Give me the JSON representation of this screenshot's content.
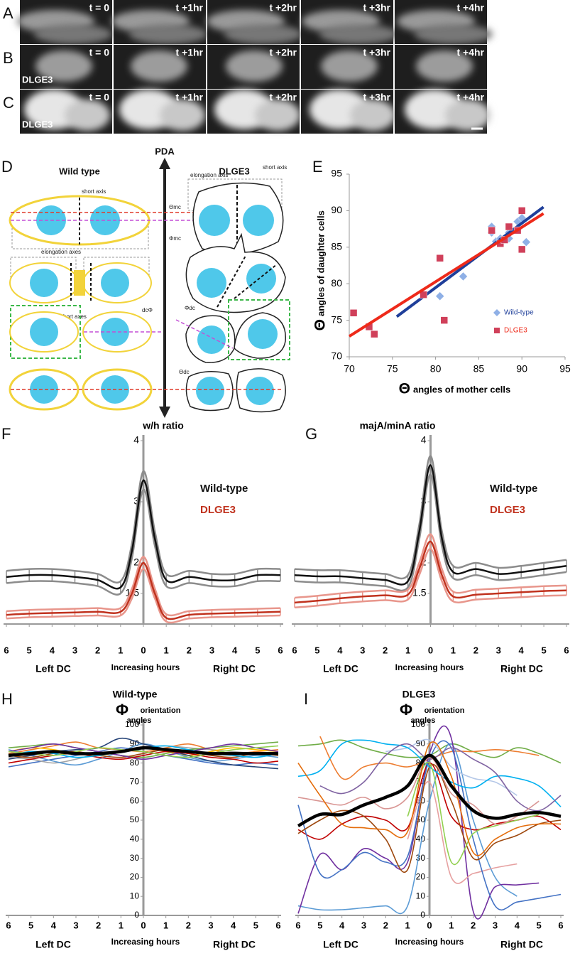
{
  "panels": {
    "rows": [
      {
        "label": "A",
        "times": [
          "t = 0",
          "t +1hr",
          "t +2hr",
          "t +3hr",
          "t +4hr"
        ]
      },
      {
        "label": "B",
        "times": [
          "t = 0",
          "t +1hr",
          "t +2hr",
          "t +3hr",
          "t +4hr"
        ],
        "tag": "DLGE3"
      },
      {
        "label": "C",
        "times": [
          "t = 0",
          "t +1hr",
          "t +2hr",
          "t +3hr",
          "t +4hr"
        ],
        "tag": "DLGE3"
      }
    ]
  },
  "diagram": {
    "label": "D",
    "wild_type": "Wild type",
    "axis": "PDA",
    "mutant": "DLGE3",
    "short_axis_wt": "short axis",
    "short_axis_mut": "short axis",
    "elongation_axis": "elongation axis",
    "elongation_axes": "elongation axes",
    "short_axes": "short axes",
    "theta_mc": "Θmc",
    "phi_mc": "Φmc",
    "dc_phi": "dcΦ",
    "phi_dc": "Φdc",
    "theta_dc": "Θdc"
  },
  "chart_data": [
    {
      "type": "scatter",
      "panel": "E",
      "xlabel_symbol": "Θ",
      "xlabel": "angles of mother cells",
      "ylabel_symbol": "Θ",
      "ylabel": "angles of daughter cells",
      "xlim": [
        70,
        95
      ],
      "xticks": [
        70,
        75,
        80,
        85,
        90,
        95
      ],
      "ylim": [
        70,
        95
      ],
      "yticks": [
        70,
        75,
        80,
        85,
        90,
        95
      ],
      "legend": "lower right",
      "series": [
        {
          "name": "Wild-type",
          "color": "#8fb0e6",
          "marker": "diamond",
          "x": [
            80.5,
            83.2,
            86.5,
            86.5,
            87,
            87.5,
            88.5,
            88.5,
            89.5,
            90,
            90.5
          ],
          "values": [
            78.3,
            81,
            87.8,
            87,
            85.8,
            86.2,
            86.2,
            87,
            88.5,
            89,
            85.7
          ],
          "trend_color": "#1f3f9a",
          "trend_x": [
            75.5,
            92.5
          ],
          "trend_values": [
            75.5,
            90.5
          ]
        },
        {
          "name": "DLGE3",
          "color": "#d0405a",
          "marker": "square",
          "x": [
            70.5,
            72.3,
            72.9,
            78.6,
            80.5,
            81,
            86.5,
            87.5,
            88,
            88.5,
            89.5,
            90,
            90
          ],
          "values": [
            76,
            74.1,
            73.1,
            78.5,
            83.5,
            75,
            87.3,
            85.5,
            86,
            87.8,
            87.3,
            90,
            84.7
          ],
          "trend_color": "#ee2a1a",
          "trend_x": [
            70,
            92.5
          ],
          "trend_values": [
            72.8,
            89.6
          ]
        }
      ]
    },
    {
      "type": "line",
      "panel": "F",
      "title": "w/h ratio",
      "x": [
        -6,
        -5,
        -4,
        -3,
        -2,
        -1,
        -0.5,
        0,
        0.5,
        1,
        2,
        3,
        4,
        5,
        6
      ],
      "xlim": [
        -6,
        6
      ],
      "xticks": [
        {
          "value": -6,
          "label": "6"
        },
        {
          "value": -5,
          "label": "5"
        },
        {
          "value": -4,
          "label": "4"
        },
        {
          "value": -3,
          "label": "3"
        },
        {
          "value": -2,
          "label": "2"
        },
        {
          "value": -1,
          "label": "1"
        },
        0,
        1,
        2,
        3,
        4,
        5,
        6
      ],
      "xlabels": [
        "Left DC",
        "Increasing hours",
        "Right DC"
      ],
      "ylim": [
        1,
        4
      ],
      "yticks": [
        1.5,
        2,
        3,
        4
      ],
      "series": [
        {
          "name": "Wild-type",
          "color": "#111111",
          "band_color": "#8c8c8c",
          "values": [
            1.77,
            1.8,
            1.8,
            1.77,
            1.72,
            1.6,
            2.2,
            3.35,
            2.4,
            1.72,
            1.77,
            1.72,
            1.72,
            1.8,
            1.8
          ],
          "errors": [
            0.1,
            0.1,
            0.1,
            0.1,
            0.1,
            0.1,
            0.12,
            0.15,
            0.12,
            0.1,
            0.1,
            0.1,
            0.1,
            0.1,
            0.1
          ]
        },
        {
          "name": "DLGE3",
          "color": "#c0321e",
          "band_color": "#e8968c",
          "values": [
            1.15,
            1.17,
            1.18,
            1.19,
            1.2,
            1.2,
            1.5,
            2.0,
            1.5,
            1.1,
            1.15,
            1.17,
            1.18,
            1.19,
            1.2
          ],
          "errors": [
            0.06,
            0.06,
            0.06,
            0.06,
            0.06,
            0.06,
            0.08,
            0.1,
            0.08,
            0.06,
            0.06,
            0.06,
            0.06,
            0.06,
            0.06
          ]
        }
      ]
    },
    {
      "type": "line",
      "panel": "G",
      "title": "majA/minA ratio",
      "x": [
        -6,
        -5,
        -4,
        -3,
        -2,
        -1,
        -0.5,
        0,
        0.5,
        1,
        2,
        3,
        4,
        5,
        6
      ],
      "xlim": [
        -6,
        6
      ],
      "xticks": [
        {
          "value": -6,
          "label": "6"
        },
        {
          "value": -5,
          "label": "5"
        },
        {
          "value": -4,
          "label": "4"
        },
        {
          "value": -3,
          "label": "3"
        },
        {
          "value": -2,
          "label": "2"
        },
        {
          "value": -1,
          "label": "1"
        },
        0,
        1,
        2,
        3,
        4,
        5,
        6
      ],
      "xlabels": [
        "Left DC",
        "Increasing hours",
        "Right DC"
      ],
      "ylim": [
        1,
        4
      ],
      "yticks": [
        1.5,
        2,
        3,
        4
      ],
      "series": [
        {
          "name": "Wild-type",
          "color": "#111111",
          "band_color": "#8c8c8c",
          "values": [
            1.8,
            1.78,
            1.78,
            1.75,
            1.72,
            1.7,
            2.5,
            3.6,
            2.4,
            1.85,
            1.9,
            1.82,
            1.85,
            1.9,
            1.95
          ],
          "errors": [
            0.1,
            0.1,
            0.1,
            0.1,
            0.1,
            0.1,
            0.12,
            0.15,
            0.12,
            0.1,
            0.1,
            0.1,
            0.1,
            0.1,
            0.1
          ]
        },
        {
          "name": "DLGE3",
          "color": "#c0321e",
          "band_color": "#e8968c",
          "values": [
            1.35,
            1.38,
            1.42,
            1.45,
            1.47,
            1.48,
            1.9,
            2.35,
            1.8,
            1.45,
            1.48,
            1.5,
            1.52,
            1.54,
            1.55
          ],
          "errors": [
            0.08,
            0.08,
            0.08,
            0.08,
            0.08,
            0.08,
            0.1,
            0.12,
            0.1,
            0.08,
            0.08,
            0.08,
            0.08,
            0.08,
            0.08
          ]
        }
      ]
    },
    {
      "type": "line",
      "panel": "H",
      "title": "Wild-type",
      "ylabel_symbol": "Φ",
      "ylabel_lines": [
        "orientation",
        "angles"
      ],
      "x": [
        -6,
        -5,
        -4,
        -3,
        -2,
        -1,
        0,
        1,
        2,
        3,
        4,
        5,
        6
      ],
      "xlim": [
        -6,
        6
      ],
      "xticks": [
        {
          "value": -6,
          "label": "6"
        },
        {
          "value": -5,
          "label": "5"
        },
        {
          "value": -4,
          "label": "4"
        },
        {
          "value": -3,
          "label": "3"
        },
        {
          "value": -2,
          "label": "2"
        },
        {
          "value": -1,
          "label": "1"
        },
        0,
        1,
        2,
        3,
        4,
        5,
        6
      ],
      "xlabels": [
        "Left DC",
        "Increasing hours",
        "Right DC"
      ],
      "ylim": [
        0,
        100
      ],
      "yticks": [
        0,
        10,
        20,
        30,
        40,
        50,
        60,
        70,
        80,
        90,
        100
      ],
      "series": [
        {
          "color": "#4472c4",
          "values": [
            78,
            80,
            82,
            84,
            86,
            88,
            86,
            84,
            82,
            80,
            79,
            80,
            79
          ]
        },
        {
          "color": "#ed7d31",
          "values": [
            85,
            87,
            89,
            91,
            88,
            87,
            86,
            88,
            90,
            87,
            85,
            86,
            87
          ]
        },
        {
          "color": "#a5a5a5",
          "values": [
            83,
            82,
            80,
            82,
            85,
            86,
            88,
            89,
            88,
            87,
            86,
            85,
            84
          ]
        },
        {
          "color": "#ffc000",
          "values": [
            86,
            88,
            87,
            85,
            84,
            86,
            88,
            86,
            84,
            86,
            88,
            87,
            86
          ]
        },
        {
          "color": "#5b9bd5",
          "values": [
            87,
            84,
            81,
            79,
            82,
            86,
            90,
            87,
            83,
            81,
            82,
            84,
            83
          ]
        },
        {
          "color": "#70ad47",
          "values": [
            88,
            89,
            90,
            88,
            86,
            84,
            83,
            85,
            87,
            88,
            89,
            90,
            91
          ]
        },
        {
          "color": "#264478",
          "values": [
            82,
            84,
            86,
            87,
            88,
            93,
            90,
            87,
            84,
            81,
            79,
            78,
            77
          ]
        },
        {
          "color": "#9e480e",
          "values": [
            84,
            83,
            85,
            86,
            84,
            83,
            85,
            87,
            86,
            84,
            83,
            85,
            84
          ]
        },
        {
          "color": "#7030a0",
          "values": [
            86,
            88,
            90,
            88,
            86,
            84,
            82,
            84,
            86,
            88,
            90,
            88,
            86
          ]
        },
        {
          "color": "#c00000",
          "values": [
            80,
            82,
            84,
            85,
            83,
            82,
            84,
            86,
            85,
            83,
            82,
            80,
            81
          ]
        },
        {
          "color": "#00b0f0",
          "values": [
            84,
            86,
            85,
            83,
            84,
            86,
            88,
            89,
            87,
            85,
            84,
            83,
            85
          ]
        },
        {
          "color": "#92d050",
          "values": [
            86,
            85,
            84,
            86,
            88,
            87,
            86,
            84,
            83,
            85,
            87,
            88,
            89
          ]
        },
        {
          "color": "#000000",
          "bold": true,
          "values": [
            84,
            85,
            86,
            85,
            85,
            86,
            88,
            87,
            86,
            85,
            85,
            85,
            85
          ]
        }
      ]
    },
    {
      "type": "line",
      "panel": "I",
      "title": "DLGE3",
      "ylabel_symbol": "Φ",
      "ylabel_lines": [
        "orientation",
        "angles"
      ],
      "x": [
        -6,
        -5,
        -4,
        -3,
        -2,
        -1,
        0,
        1,
        2,
        3,
        4,
        5,
        6
      ],
      "xlim": [
        -6,
        6
      ],
      "xticks": [
        {
          "value": -6,
          "label": "6"
        },
        {
          "value": -5,
          "label": "5"
        },
        {
          "value": -4,
          "label": "4"
        },
        {
          "value": -3,
          "label": "3"
        },
        {
          "value": -2,
          "label": "2"
        },
        {
          "value": -1,
          "label": "1"
        },
        0,
        1,
        2,
        3,
        4,
        5,
        6
      ],
      "xlabels": [
        "Left DC",
        "Increasing hours",
        "Right DC"
      ],
      "ylim": [
        0,
        100
      ],
      "yticks": [
        0,
        10,
        20,
        30,
        40,
        50,
        60,
        70,
        80,
        90,
        100
      ],
      "series": [
        {
          "color": "#70ad47",
          "values": [
            89,
            90,
            92,
            88,
            85,
            83,
            84,
            90,
            86,
            83,
            88,
            85,
            80
          ]
        },
        {
          "color": "#ed7d31",
          "values": [
            null,
            94,
            72,
            78,
            80,
            78,
            82,
            86,
            86,
            87,
            86,
            84,
            null
          ]
        },
        {
          "color": "#5b9bd5",
          "values": [
            5,
            3,
            3,
            4,
            5,
            5,
            60,
            90,
            50,
            20,
            10,
            null,
            null
          ]
        },
        {
          "color": "#7030a0",
          "values": [
            1,
            32,
            24,
            35,
            30,
            28,
            85,
            93,
            2,
            15,
            16,
            17,
            null
          ]
        },
        {
          "color": "#c00000",
          "values": [
            45,
            40,
            48,
            52,
            50,
            46,
            80,
            52,
            45,
            48,
            50,
            52,
            45
          ]
        },
        {
          "color": "#e6a0a0",
          "values": [
            null,
            null,
            null,
            null,
            null,
            40,
            70,
            20,
            22,
            25,
            27,
            null,
            null
          ]
        },
        {
          "color": "#4472c4",
          "values": [
            58,
            22,
            24,
            33,
            28,
            31,
            82,
            88,
            40,
            5,
            7,
            9,
            11
          ]
        },
        {
          "color": "#9e480e",
          "values": [
            43,
            50,
            55,
            52,
            40,
            24,
            78,
            60,
            30,
            38,
            42,
            48,
            50
          ]
        },
        {
          "color": "#b4c7e7",
          "values": [
            null,
            null,
            null,
            null,
            86,
            88,
            92,
            78,
            72,
            70,
            63,
            null,
            null
          ]
        },
        {
          "color": "#00b0f0",
          "values": [
            73,
            76,
            90,
            92,
            90,
            88,
            78,
            70,
            67,
            73,
            72,
            68,
            57
          ]
        },
        {
          "color": "#92d050",
          "values": [
            null,
            null,
            null,
            null,
            null,
            52,
            80,
            28,
            43,
            47,
            50,
            53,
            null
          ]
        },
        {
          "color": "#8064a2",
          "values": [
            null,
            68,
            64,
            70,
            84,
            90,
            82,
            88,
            82,
            75,
            60,
            55,
            63
          ]
        },
        {
          "color": "#d99694",
          "values": [
            62,
            60,
            58,
            62,
            56,
            62,
            83,
            64,
            58,
            48,
            52,
            60,
            null
          ]
        },
        {
          "color": "#e46c0a",
          "values": [
            80,
            63,
            48,
            46,
            45,
            44,
            90,
            73,
            33,
            40,
            46,
            48,
            48
          ]
        },
        {
          "color": "#000000",
          "bold": true,
          "values": [
            47,
            53,
            53,
            58,
            62,
            68,
            84,
            68,
            55,
            51,
            53,
            54,
            52
          ]
        }
      ]
    }
  ]
}
